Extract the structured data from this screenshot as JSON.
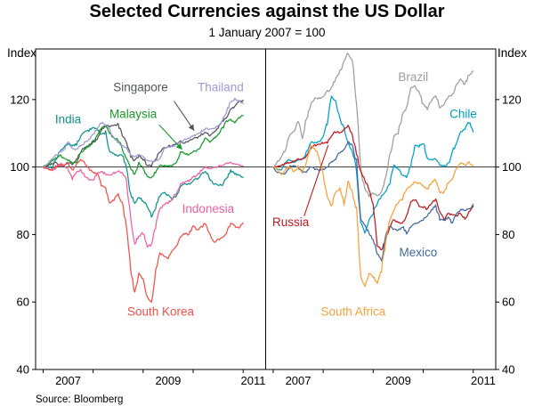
{
  "chart_data": {
    "type": "line",
    "title": "Selected Currencies against the US Dollar",
    "subtitle": "1 January 2007 = 100",
    "source": "Source: Bloomberg",
    "axes": {
      "unit_label": "Index",
      "y_ticks": [
        40,
        60,
        80,
        100,
        120
      ],
      "ylim": [
        40,
        135
      ],
      "x_domain": [
        2006.85,
        2011.45
      ],
      "x_year_ticks": [
        2007,
        2008,
        2009,
        2010,
        2011
      ],
      "x_tick_labels": [
        {
          "text": "2007",
          "year": 2007.5
        },
        {
          "text": "2009",
          "year": 2009.5
        },
        {
          "text": "2011",
          "year": 2011.35
        }
      ],
      "reference_line": 100,
      "grid": false,
      "legend_position": "inline-annotations"
    },
    "x_start": 2007.0,
    "points_per_year": 12,
    "panels": [
      {
        "name": "asia",
        "series": [
          {
            "name": "India",
            "label": "India",
            "color": "#0e938e",
            "label_pos": [
              2007.5,
              113
            ],
            "values": [
              100,
              100.3,
              99.6,
              102,
              104.5,
              106,
              107,
              106.2,
              106.8,
              109,
              110.5,
              110.8,
              112,
              111.2,
              109.5,
              110.2,
              104.5,
              103.8,
              103.2,
              103.6,
              99.5,
              92,
              89.5,
              91,
              90,
              88.5,
              85.5,
              88,
              91.5,
              92.5,
              91.5,
              90.5,
              91.5,
              94.5,
              95,
              94.8,
              96,
              96.5,
              98,
              99,
              96.5,
              95,
              94.5,
              94.8,
              96.5,
              99,
              98,
              97.5,
              97
            ]
          },
          {
            "name": "Singapore",
            "label": "Singapore",
            "color": "#54555a",
            "label_pos": [
              2008.95,
              122.5
            ],
            "callout": {
              "x1": 2009.62,
              "y1": 119.5,
              "x2": 2010.02,
              "y2": 110.8,
              "head": true
            },
            "values": [
              100,
              100.4,
              101,
              101.3,
              100.7,
              100.2,
              101.4,
              101,
              102.3,
              104.5,
              105.8,
              106.3,
              107.4,
              108.3,
              110.8,
              112.3,
              112,
              112.2,
              112.6,
              109.4,
              107.2,
              103.2,
              101.8,
              103.4,
              102.4,
              100.4,
              100.6,
              102.2,
              104.6,
              105.6,
              106.2,
              106.4,
              106.8,
              107.6,
              107.2,
              107.8,
              108.4,
              108.8,
              109.6,
              110.4,
              109.4,
              110.2,
              111.8,
              113.4,
              114.8,
              117.4,
              117.8,
              119.4,
              119.8
            ]
          },
          {
            "name": "Malaysia",
            "label": "Malaysia",
            "color": "#17992b",
            "label_pos": [
              2008.8,
              114.5
            ],
            "callout": {
              "x1": 2009.32,
              "y1": 112.5,
              "x2": 2009.78,
              "y2": 105.2,
              "head": true
            },
            "values": [
              100,
              100.6,
              101.8,
              102.6,
              103.6,
              102.4,
              102,
              101.2,
              101.6,
              104.2,
              105.4,
              106.2,
              107.6,
              109.6,
              111.6,
              112,
              110.2,
              108.4,
              108.2,
              105.4,
              102.4,
              99.4,
              97.8,
              101.4,
              99.4,
              97.4,
              96.6,
              98.6,
              100.6,
              100.4,
              100.2,
              100.4,
              101.6,
              104.6,
              104.2,
              103.4,
              104.6,
              104.8,
              106.6,
              108.6,
              107.4,
              108.4,
              109.8,
              111.4,
              113.6,
              114,
              113.2,
              114.6,
              115.2
            ]
          },
          {
            "name": "Thailand",
            "label": "Thailand",
            "color": "#9b9bd7",
            "label_pos": [
              2010.55,
              122.5
            ],
            "values": [
              100,
              100.8,
              102.2,
              103.4,
              104.4,
              105.2,
              107.6,
              105.4,
              105.2,
              106.4,
              107.2,
              108.4,
              109.6,
              111.4,
              113.2,
              112.4,
              111,
              108.4,
              107.4,
              106.4,
              105.8,
              103.6,
              103.2,
              103.6,
              103.2,
              102,
              101.6,
              101.8,
              102.6,
              105.4,
              105.8,
              106,
              106.6,
              107.4,
              108.2,
              108.6,
              109.2,
              109.6,
              110.6,
              111.4,
              111.2,
              111.6,
              112,
              113.6,
              116.4,
              119.4,
              120.2,
              119.6,
              118.8
            ]
          },
          {
            "name": "Indonesia",
            "label": "Indonesia",
            "color": "#f05fa6",
            "label_pos": [
              2010.3,
              86.5
            ],
            "values": [
              100,
              99.4,
              99,
              99.2,
              101.2,
              100.4,
              99.4,
              96.4,
              98.6,
              99.2,
              97.4,
              96.4,
              96,
              98.2,
              98.6,
              98,
              97.6,
              98.2,
              98.8,
              98.4,
              96.2,
              85,
              77.5,
              79.5,
              80.5,
              76.5,
              77,
              82.5,
              87.5,
              89,
              89.5,
              90.5,
              92.5,
              95,
              95.5,
              96,
              97,
              97.5,
              99,
              100,
              99.4,
              99.8,
              100.2,
              100.4,
              101,
              101.2,
              101,
              100.6,
              100.2
            ]
          },
          {
            "name": "South Korea",
            "label": "South Korea",
            "color": "#f2504b",
            "label_pos": [
              2009.35,
              56
            ],
            "values": [
              100,
              99.4,
              99,
              100.2,
              100.4,
              100.6,
              101.4,
              99,
              100.6,
              102.4,
              101.4,
              99.4,
              98.4,
              98,
              94.4,
              94,
              89.4,
              90.4,
              92,
              89.4,
              82.4,
              70.4,
              62.5,
              68.5,
              66.5,
              61.5,
              60,
              69.5,
              74.5,
              73.5,
              73,
              75,
              76.5,
              79.5,
              80.2,
              80,
              82.4,
              81.4,
              82.2,
              83.4,
              80,
              77.5,
              78.5,
              79,
              80.5,
              83.4,
              82.4,
              82,
              83.4
            ]
          }
        ]
      },
      {
        "name": "emerging",
        "series": [
          {
            "name": "Brazil",
            "label": "Brazil",
            "color": "#9e9e9e",
            "label_pos": [
              2009.8,
              125.5
            ],
            "values": [
              100,
              101.4,
              103,
              105.4,
              109.4,
              110.8,
              113.4,
              109,
              114.4,
              118.4,
              120.4,
              120.4,
              121,
              122.4,
              123.4,
              126.4,
              128.4,
              131,
              134,
              131.5,
              119.4,
              99.4,
              93.4,
              91.4,
              92.4,
              91.4,
              92.4,
              97.4,
              103.4,
              109.4,
              110.4,
              115.4,
              117.4,
              123.4,
              123.8,
              122.4,
              118.4,
              117.4,
              119.8,
              121.4,
              117.4,
              118.4,
              120.8,
              121.4,
              124.4,
              126.4,
              124.4,
              127.4,
              128.4
            ]
          },
          {
            "name": "Chile",
            "label": "Chile",
            "color": "#00a0c6",
            "label_pos": [
              2010.8,
              114.5
            ],
            "values": [
              100,
              99.4,
              99,
              101.4,
              102.2,
              101.4,
              102,
              102.4,
              104.4,
              107.4,
              107.2,
              107.4,
              109.4,
              113.4,
              121,
              119.4,
              114.4,
              111.4,
              107.4,
              104.4,
              99.4,
              83.5,
              80.5,
              84.5,
              86.5,
              89.5,
              91.5,
              92.5,
              95.5,
              100.4,
              99.4,
              97.4,
              97.2,
              100.4,
              106.4,
              106.2,
              107.4,
              102.4,
              102.2,
              102.4,
              100.4,
              100.2,
              100.8,
              104.4,
              107.4,
              110.4,
              111.4,
              113.4,
              110.4
            ]
          },
          {
            "name": "Russia",
            "label": "Russia",
            "color": "#c0181f",
            "label_pos": [
              2007.35,
              82.5
            ],
            "callout": {
              "x1": 2007.62,
              "y1": 85.5,
              "x2": 2008.1,
              "y2": 106.5,
              "head": false
            },
            "values": [
              100,
              100.2,
              100.4,
              101.2,
              101.4,
              101.8,
              102.4,
              102.2,
              103.4,
              105.4,
              106.4,
              106.8,
              107.2,
              107.4,
              109.4,
              110.4,
              110.2,
              110.8,
              112.4,
              109.4,
              104.4,
              98.4,
              96.4,
              93.4,
              88.4,
              76.5,
              75.5,
              78.5,
              82.5,
              84.5,
              83.5,
              83,
              85.5,
              89.5,
              90.4,
              88.4,
              88.2,
              87.4,
              89.4,
              90.4,
              86.4,
              84.4,
              86.4,
              85.8,
              85.4,
              86.4,
              84.4,
              86.4,
              88.4
            ]
          },
          {
            "name": "Mexico",
            "label": "Mexico",
            "color": "#41699e",
            "label_pos": [
              2009.9,
              73.5
            ],
            "values": [
              100,
              98.4,
              98,
              98.2,
              100.2,
              100.4,
              100,
              98.4,
              98.8,
              100.2,
              99.4,
              99.2,
              99.2,
              100.2,
              101.4,
              102.4,
              104.4,
              104.8,
              107.4,
              106.4,
              101.4,
              84.5,
              82.5,
              80.5,
              78.5,
              74.5,
              72.5,
              79.5,
              82.5,
              81.5,
              81,
              82.5,
              80.5,
              82.2,
              83.4,
              83.8,
              84.4,
              85.4,
              87.4,
              88.4,
              84.4,
              84.2,
              85,
              83.4,
              86.4,
              87.4,
              87.2,
              87.4,
              89
            ]
          },
          {
            "name": "South Africa",
            "label": "South Africa",
            "color": "#f9a13b",
            "label_pos": [
              2008.6,
              56
            ],
            "values": [
              100,
              99.4,
              97.4,
              99.4,
              100.2,
              98.4,
              100.2,
              98.2,
              101.4,
              106.4,
              105.4,
              103.4,
              97.4,
              91.4,
              88.4,
              92.4,
              93.4,
              89.4,
              95.4,
              92.4,
              87.4,
              67.5,
              64.5,
              68.5,
              67.5,
              65.5,
              69.5,
              78.5,
              84.5,
              87.5,
              89.5,
              90.5,
              93.5,
              94.5,
              95.5,
              95.2,
              94.5,
              93.5,
              95.5,
              96.5,
              92.5,
              92.2,
              95.5,
              96.5,
              99.5,
              101.4,
              100.4,
              101.4,
              100.4
            ]
          }
        ]
      }
    ]
  }
}
